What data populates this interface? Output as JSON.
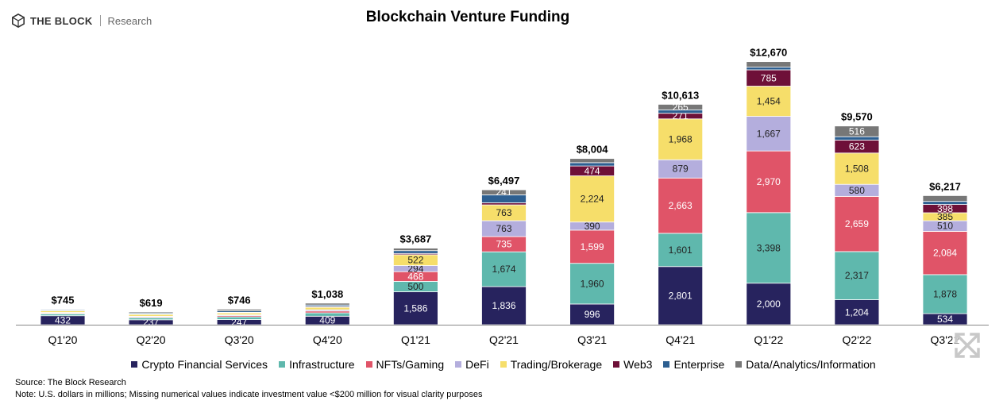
{
  "brand": {
    "name": "THE BLOCK",
    "sub": "Research"
  },
  "chart_data": {
    "type": "bar",
    "stacked": true,
    "title": "Blockchain Venture Funding",
    "xlabel": "",
    "ylabel": "",
    "ylim": [
      0,
      13000
    ],
    "grid": false,
    "legend_position": "bottom",
    "categories": [
      "Q1'20",
      "Q2'20",
      "Q3'20",
      "Q4'20",
      "Q1'21",
      "Q2'21",
      "Q3'21",
      "Q4'21",
      "Q1'22",
      "Q2'22",
      "Q3'22"
    ],
    "totals": [
      745,
      619,
      746,
      1038,
      3687,
      6497,
      8004,
      10613,
      12670,
      9570,
      6217
    ],
    "total_labels": [
      "$745",
      "$619",
      "$746",
      "$1,038",
      "$3,687",
      "$6,497",
      "$8,004",
      "$10,613",
      "$12,670",
      "$9,570",
      "$6,217"
    ],
    "series": [
      {
        "name": "Crypto Financial Services",
        "color": "#27235e",
        "values": [
          432,
          237,
          247,
          409,
          1586,
          1836,
          996,
          2801,
          2000,
          1204,
          534
        ],
        "labels": [
          "432",
          "237",
          "247",
          "409",
          "1,586",
          "1,836",
          "996",
          "2,801",
          "2,000",
          "1,204",
          "534"
        ]
      },
      {
        "name": "Infrastructure",
        "color": "#5fb8ad",
        "values": [
          90,
          100,
          130,
          160,
          500,
          1674,
          1960,
          1601,
          3398,
          2317,
          1878
        ],
        "labels": [
          "",
          "",
          "",
          "",
          "500",
          "1,674",
          "1,960",
          "1,601",
          "3,398",
          "2,317",
          "1,878"
        ]
      },
      {
        "name": "NFTs/Gaming",
        "color": "#e05468",
        "values": [
          40,
          40,
          60,
          90,
          468,
          735,
          1599,
          2663,
          2970,
          2659,
          2084
        ],
        "labels": [
          "",
          "",
          "",
          "",
          "468",
          "735",
          "1,599",
          "2,663",
          "2,970",
          "2,659",
          "2,084"
        ]
      },
      {
        "name": "DeFi",
        "color": "#b4aedd",
        "values": [
          30,
          30,
          40,
          60,
          294,
          763,
          390,
          879,
          1667,
          580,
          510
        ],
        "labels": [
          "",
          "",
          "",
          "",
          "294",
          "763",
          "390",
          "879",
          "1,667",
          "580",
          "510"
        ]
      },
      {
        "name": "Trading/Brokerage",
        "color": "#f6de6a",
        "values": [
          80,
          90,
          90,
          120,
          522,
          763,
          2224,
          1968,
          1454,
          1508,
          385
        ],
        "labels": [
          "",
          "",
          "",
          "",
          "522",
          "763",
          "2,224",
          "1,968",
          "1,454",
          "1,508",
          "385"
        ]
      },
      {
        "name": "Web3",
        "color": "#6e1038",
        "values": [
          10,
          20,
          30,
          40,
          60,
          100,
          474,
          271,
          785,
          623,
          398
        ],
        "labels": [
          "",
          "",
          "",
          "",
          "",
          "",
          "474",
          "271",
          "785",
          "623",
          "398"
        ]
      },
      {
        "name": "Enterprise",
        "color": "#2d5f91",
        "values": [
          40,
          50,
          70,
          70,
          137,
          385,
          161,
          165,
          131,
          163,
          150
        ],
        "labels": [
          "",
          "",
          "",
          "",
          "",
          "",
          "",
          "",
          "",
          "",
          ""
        ]
      },
      {
        "name": "Data/Analytics/Information",
        "color": "#777777",
        "values": [
          23,
          52,
          79,
          89,
          120,
          241,
          200,
          265,
          265,
          516,
          278
        ],
        "labels": [
          "",
          "",
          "",
          "",
          "",
          "241",
          "",
          "265",
          "",
          "516",
          ""
        ]
      }
    ]
  },
  "notes": {
    "source": "Source: The Block Research",
    "note": "Note: U.S. dollars in millions; Missing numerical values indicate investment value <$200 million for visual clarity purposes"
  }
}
